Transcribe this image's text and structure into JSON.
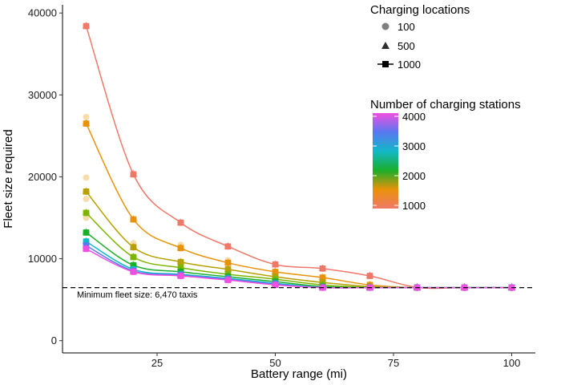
{
  "chart_data": {
    "type": "line",
    "xlabel": "Battery range (mi)",
    "ylabel": "Fleet size required",
    "xlim": [
      5,
      105
    ],
    "ylim": [
      -1500,
      41000
    ],
    "x_ticks": [
      25,
      50,
      75,
      100
    ],
    "y_ticks": [
      0,
      10000,
      20000,
      30000,
      40000
    ],
    "x_tick_labels": [
      "25",
      "50",
      "75",
      "100"
    ],
    "y_tick_labels": [
      "0",
      "10000",
      "20000",
      "30000",
      "40000"
    ],
    "grid": false,
    "x": [
      10,
      20,
      30,
      40,
      50,
      60,
      70,
      80,
      90,
      100
    ],
    "reference_line": {
      "y": 6470,
      "label": "Minimum fleet size: 6,470 taxis",
      "style": "dashed"
    },
    "series": [
      {
        "stations": 1000,
        "color": "#F07868",
        "values": [
          38400,
          20300,
          14400,
          11500,
          9300,
          8800,
          7900,
          6500,
          6470,
          6470
        ]
      },
      {
        "stations": 1500,
        "color": "#E8920A",
        "values": [
          26500,
          14800,
          11300,
          9500,
          8400,
          7700,
          6800,
          6470,
          6470,
          6470
        ]
      },
      {
        "stations": 2000,
        "color": "#B8A000",
        "values": [
          18200,
          11400,
          9600,
          8700,
          7800,
          7100,
          6600,
          6470,
          6470,
          6470
        ]
      },
      {
        "stations": 2200,
        "color": "#7DB500",
        "values": [
          15600,
          10200,
          8900,
          8100,
          7500,
          6800,
          6500,
          6470,
          6470,
          6470
        ]
      },
      {
        "stations": 2500,
        "color": "#1BAE2A",
        "values": [
          13200,
          9200,
          8400,
          7800,
          7200,
          6600,
          6480,
          6470,
          6470,
          6470
        ]
      },
      {
        "stations": 3000,
        "color": "#12B8C8",
        "values": [
          12100,
          8700,
          8100,
          7600,
          7000,
          6500,
          6470,
          6470,
          6470,
          6470
        ]
      },
      {
        "stations": 3500,
        "color": "#5878F0",
        "values": [
          11600,
          8500,
          8000,
          7500,
          6900,
          6480,
          6470,
          6470,
          6470,
          6470
        ]
      },
      {
        "stations": 4000,
        "color": "#F050E0",
        "values": [
          11200,
          8400,
          7900,
          7400,
          6800,
          6470,
          6470,
          6470,
          6470,
          6470
        ]
      }
    ],
    "faint_points": {
      "note_color": "#F6D9A4",
      "x": [
        10,
        10,
        10,
        10,
        20,
        30,
        40
      ],
      "y": [
        27300,
        19900,
        17300,
        15000,
        11900,
        11700,
        9800
      ]
    },
    "legend_shape": {
      "title": "Charging locations",
      "entries": [
        {
          "label": "100",
          "shape": "circle"
        },
        {
          "label": "500",
          "shape": "triangle"
        },
        {
          "label": "1000",
          "shape": "square"
        }
      ]
    },
    "legend_color": {
      "title": "Number of charging stations",
      "min": 1000,
      "max": 4000,
      "ticks": [
        1000,
        2000,
        3000,
        4000
      ],
      "tick_labels": [
        "1000",
        "2000",
        "3000",
        "4000"
      ],
      "gradient": [
        "#F07868",
        "#E8920A",
        "#1BAE2A",
        "#12B8C8",
        "#5878F0",
        "#F050E0"
      ]
    }
  }
}
